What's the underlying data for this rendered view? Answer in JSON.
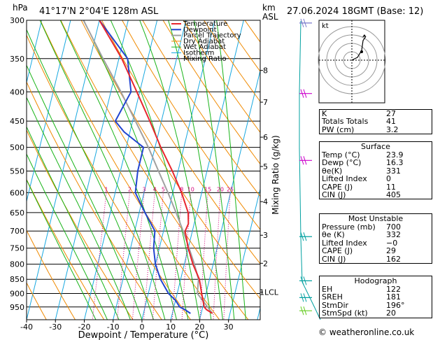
{
  "header": {
    "pressure_unit": "hPa",
    "location": "41°17'N  2°04'E  128m  ASL",
    "height_unit_top": "km",
    "height_unit_bottom": "ASL",
    "datetime": "27.06.2024  18GMT  (Base: 12)"
  },
  "chart_data": {
    "type": "skew-t",
    "x_label": "Dewpoint / Temperature (°C)",
    "x_ticks": [
      "-40",
      "-30",
      "-20",
      "-10",
      "0",
      "10",
      "20",
      "30"
    ],
    "y_ticks": [
      "300",
      "350",
      "400",
      "450",
      "500",
      "550",
      "600",
      "650",
      "700",
      "750",
      "800",
      "850",
      "900",
      "950"
    ],
    "mixing_ratio_label": "Mixing Ratio (g/kg)",
    "mixing_ratio_values": [
      "1",
      "2",
      "3",
      "4",
      "5",
      "8",
      "10",
      "15",
      "20",
      "25"
    ],
    "km_ticks": [
      "8",
      "7",
      "6",
      "5",
      "4",
      "3",
      "2",
      "1LCL"
    ],
    "km_pressures": [
      367,
      417,
      480,
      540,
      622,
      712,
      797,
      895
    ],
    "legend": [
      "Temperature",
      "Dewpoint",
      "Parcel Trajectory",
      "Dry Adiabat",
      "Wet Adiabat",
      "Isotherm",
      "Mixing Ratio"
    ],
    "colors": {
      "temperature": "#e8262d",
      "dewpoint": "#2244d0",
      "parcel": "#a0a0a0",
      "dry_adiabat": "#f08a00",
      "wet_adiabat": "#19b419",
      "isotherm": "#18a8e0",
      "mixing_ratio": "#d4007a",
      "wind": "#00a0a0"
    },
    "temperature_profile": [
      [
        975,
        23.9
      ],
      [
        960,
        21.5
      ],
      [
        950,
        20.5
      ],
      [
        925,
        19.5
      ],
      [
        900,
        18.5
      ],
      [
        850,
        16.5
      ],
      [
        800,
        13
      ],
      [
        750,
        10
      ],
      [
        700,
        7.5
      ],
      [
        680,
        8
      ],
      [
        650,
        7
      ],
      [
        600,
        3
      ],
      [
        550,
        -2
      ],
      [
        500,
        -8
      ],
      [
        450,
        -14
      ],
      [
        400,
        -21
      ],
      [
        350,
        -29
      ],
      [
        300,
        -40
      ]
    ],
    "dewpoint_profile": [
      [
        975,
        16.3
      ],
      [
        960,
        14
      ],
      [
        950,
        12
      ],
      [
        925,
        10
      ],
      [
        900,
        7
      ],
      [
        850,
        3
      ],
      [
        800,
        0
      ],
      [
        750,
        -2
      ],
      [
        700,
        -3
      ],
      [
        650,
        -8
      ],
      [
        600,
        -13
      ],
      [
        550,
        -14
      ],
      [
        500,
        -14
      ],
      [
        470,
        -22
      ],
      [
        450,
        -26
      ],
      [
        400,
        -23
      ],
      [
        350,
        -27
      ],
      [
        300,
        -40
      ]
    ],
    "parcel_profile": [
      [
        975,
        23.9
      ],
      [
        900,
        17
      ],
      [
        850,
        16.2
      ],
      [
        800,
        13.5
      ],
      [
        750,
        10.3
      ],
      [
        700,
        6.8
      ],
      [
        650,
        2.8
      ],
      [
        600,
        -1.7
      ],
      [
        550,
        -6.8
      ],
      [
        500,
        -12.3
      ],
      [
        450,
        -19
      ],
      [
        400,
        -26.5
      ],
      [
        350,
        -35.5
      ],
      [
        300,
        -45.5
      ]
    ],
    "wind_barbs_pressures": [
      970,
      920,
      860,
      720,
      530,
      405,
      305
    ],
    "wind_barb_colors": [
      "#66cc22",
      "#00a0a0",
      "#00a0a0",
      "#00a0a0",
      "#cc00cc",
      "#cc00cc",
      "#7a7acc"
    ]
  },
  "hodograph": {
    "label": "kt"
  },
  "indices": [
    {
      "label": "K",
      "value": "27"
    },
    {
      "label": "Totals Totals",
      "value": "41"
    },
    {
      "label": "PW (cm)",
      "value": "3.2"
    }
  ],
  "surface": {
    "title": "Surface",
    "rows": [
      {
        "label": "Temp (°C)",
        "value": "23.9"
      },
      {
        "label": "Dewp (°C)",
        "value": "16.3"
      },
      {
        "label": "θe(K)",
        "value": "331"
      },
      {
        "label": "Lifted Index",
        "value": "0"
      },
      {
        "label": "CAPE (J)",
        "value": "11"
      },
      {
        "label": "CIN (J)",
        "value": "405"
      }
    ]
  },
  "most_unstable": {
    "title": "Most Unstable",
    "rows": [
      {
        "label": "Pressure (mb)",
        "value": "700"
      },
      {
        "label": "θe (K)",
        "value": "332"
      },
      {
        "label": "Lifted Index",
        "value": "−0"
      },
      {
        "label": "CAPE (J)",
        "value": "29"
      },
      {
        "label": "CIN (J)",
        "value": "162"
      }
    ]
  },
  "hodograph_table": {
    "title": "Hodograph",
    "rows": [
      {
        "label": "EH",
        "value": "122"
      },
      {
        "label": "SREH",
        "value": "181"
      },
      {
        "label": "StmDir",
        "value": "196°"
      },
      {
        "label": "StmSpd (kt)",
        "value": "20"
      }
    ]
  },
  "footer": "© weatheronline.co.uk"
}
